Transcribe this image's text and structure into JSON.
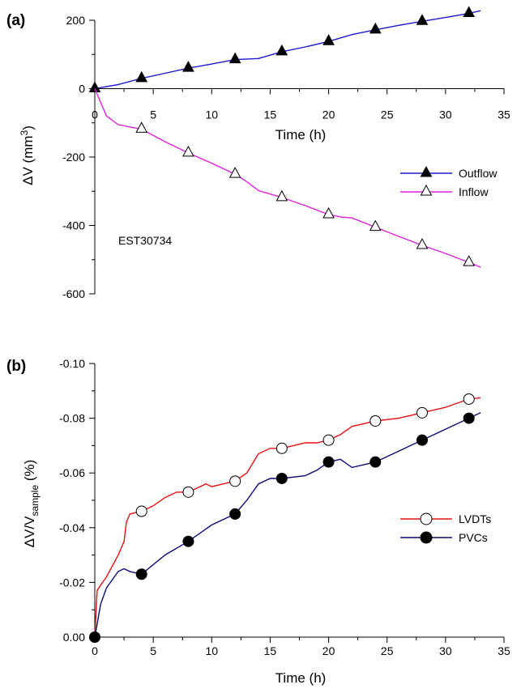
{
  "chart_data": [
    {
      "panel": "(a)",
      "type": "line",
      "xlabel": "Time (h)",
      "ylabel_prefix": "ΔV (mm",
      "ylabel_sup": "3",
      "ylabel_suffix": ")",
      "xlim": [
        0,
        35
      ],
      "ylim": [
        -600,
        200
      ],
      "xticks": [
        0,
        5,
        10,
        15,
        20,
        25,
        30,
        35
      ],
      "yticks": [
        -600,
        -400,
        -200,
        0,
        200
      ],
      "x_axis_position": "at y = 0",
      "annotation": "EST30734",
      "legend_position": "center-right",
      "series": [
        {
          "name": "Outflow",
          "color": "#1a1ad6",
          "marker": "filled-triangle",
          "x": [
            0,
            2,
            4,
            6,
            8,
            10,
            12,
            14,
            16,
            18,
            20,
            22,
            24,
            26,
            28,
            30,
            32,
            33
          ],
          "y": [
            0,
            12,
            30,
            45,
            60,
            72,
            85,
            88,
            108,
            122,
            138,
            158,
            172,
            185,
            197,
            208,
            220,
            228
          ],
          "marker_x": [
            0,
            4,
            8,
            12,
            16,
            20,
            24,
            28,
            32
          ],
          "marker_y": [
            0,
            30,
            60,
            85,
            108,
            138,
            172,
            197,
            220
          ]
        },
        {
          "name": "Inflow",
          "color": "#e020e0",
          "marker": "open-triangle",
          "x": [
            0,
            0.5,
            1,
            2,
            3,
            4,
            6,
            8,
            10,
            12,
            13,
            14,
            16,
            18,
            20,
            21,
            22,
            24,
            26,
            28,
            30,
            32,
            33
          ],
          "y": [
            0,
            -40,
            -80,
            -105,
            -112,
            -118,
            -155,
            -188,
            -218,
            -250,
            -272,
            -298,
            -318,
            -342,
            -368,
            -375,
            -378,
            -405,
            -432,
            -458,
            -482,
            -508,
            -522
          ],
          "marker_x": [
            4,
            8,
            12,
            16,
            20,
            24,
            28,
            32
          ],
          "marker_y": [
            -118,
            -188,
            -250,
            -318,
            -368,
            -405,
            -458,
            -508
          ]
        }
      ]
    },
    {
      "panel": "(b)",
      "type": "line",
      "xlabel": "Time (h)",
      "ylabel_prefix": "ΔV/V",
      "ylabel_sub": "sample",
      "ylabel_suffix": " (%)",
      "xlim": [
        0,
        35
      ],
      "ylim": [
        0,
        -0.1
      ],
      "xticks": [
        0,
        5,
        10,
        15,
        20,
        25,
        30,
        35
      ],
      "yticks": [
        0,
        -0.02,
        -0.04,
        -0.06,
        -0.08,
        -0.1
      ],
      "ytick_labels": [
        "0.00",
        "-0.02",
        "-0.04",
        "-0.06",
        "-0.08",
        "-0.10"
      ],
      "legend_position": "center-right",
      "series": [
        {
          "name": "LVDTs",
          "color": "#e81010",
          "marker": "open-circle",
          "x": [
            0,
            0.2,
            0.5,
            1,
            2,
            2.5,
            2.7,
            3,
            4,
            5,
            6,
            7,
            8,
            9,
            9.5,
            10,
            11,
            12,
            13,
            14,
            15,
            16,
            17,
            18,
            19,
            20,
            21,
            22,
            23,
            24,
            26,
            28,
            30,
            32,
            33
          ],
          "y": [
            0,
            -0.017,
            -0.019,
            -0.022,
            -0.03,
            -0.035,
            -0.042,
            -0.045,
            -0.046,
            -0.048,
            -0.051,
            -0.053,
            -0.053,
            -0.055,
            -0.056,
            -0.055,
            -0.056,
            -0.057,
            -0.06,
            -0.067,
            -0.069,
            -0.069,
            -0.07,
            -0.071,
            -0.071,
            -0.072,
            -0.074,
            -0.077,
            -0.078,
            -0.079,
            -0.08,
            -0.082,
            -0.084,
            -0.087,
            -0.0875
          ],
          "marker_x": [
            4,
            8,
            12,
            16,
            20,
            24,
            28,
            32
          ],
          "marker_y": [
            -0.046,
            -0.053,
            -0.057,
            -0.069,
            -0.072,
            -0.079,
            -0.082,
            -0.087
          ]
        },
        {
          "name": "PVCs",
          "color": "#0a0a78",
          "marker": "filled-circle",
          "x": [
            0,
            0.5,
            1,
            2,
            2.5,
            3,
            4,
            6,
            8,
            10,
            12,
            13,
            14,
            15,
            16,
            18,
            19,
            20,
            21,
            22,
            24,
            26,
            28,
            30,
            32,
            33
          ],
          "y": [
            0,
            -0.012,
            -0.018,
            -0.024,
            -0.025,
            -0.024,
            -0.023,
            -0.03,
            -0.035,
            -0.041,
            -0.045,
            -0.05,
            -0.056,
            -0.058,
            -0.058,
            -0.059,
            -0.061,
            -0.064,
            -0.065,
            -0.062,
            -0.064,
            -0.068,
            -0.072,
            -0.076,
            -0.08,
            -0.082
          ],
          "marker_x": [
            0,
            4,
            8,
            12,
            16,
            20,
            24,
            28,
            32
          ],
          "marker_y": [
            0,
            -0.023,
            -0.035,
            -0.045,
            -0.058,
            -0.064,
            -0.064,
            -0.072,
            -0.08
          ]
        }
      ]
    }
  ]
}
